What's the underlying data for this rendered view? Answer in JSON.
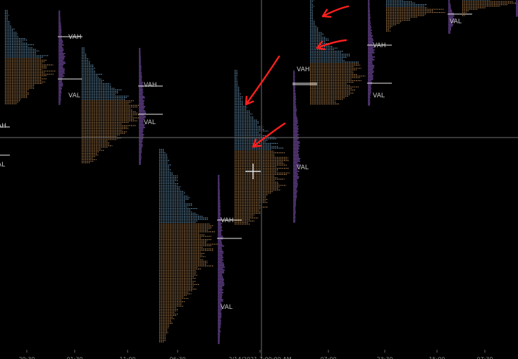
{
  "chart_data": {
    "type": "market-profile",
    "title": "",
    "xlabel": "",
    "ylabel": "",
    "axis_ticks": [
      "20:30",
      "01:30",
      "11:00",
      "06:30",
      "2/14/2021 7:00:00 AM",
      "07:00",
      "23:30",
      "15:00",
      "07:30"
    ],
    "crosshair_label": "2/14/2021 7:00:00 AM",
    "colors": {
      "background": "#000000",
      "early_tpo": "#7fb6dc",
      "late_tpo": "#d59a5c",
      "volume_profile": "#5a3b7e",
      "value_line": "#bdbdbd",
      "crosshair": "#888888",
      "annotation_arrow": "#ff1f1f"
    },
    "value_labels": {
      "vah": "VAH",
      "val": "VAL"
    },
    "profiles": [
      {
        "id": "p1",
        "vah_label": "VAH",
        "val_label": "VAL"
      },
      {
        "id": "p2",
        "vah_label": "VAH",
        "val_label": "VAL"
      },
      {
        "id": "p3",
        "vah_label": "VAH",
        "val_label": "VAL"
      },
      {
        "id": "p4",
        "vah_label": "VAH",
        "val_label": "VAL"
      },
      {
        "id": "p5",
        "vah_label": "VAH",
        "val_label": "VAL"
      },
      {
        "id": "p6",
        "vah_label": "VAH",
        "val_label": "VAL"
      },
      {
        "id": "p7",
        "vah_label": "",
        "val_label": "VAL"
      },
      {
        "id": "p0",
        "vah_label": "AH",
        "val_label": "AL"
      }
    ],
    "annotations": [
      {
        "type": "arrow",
        "color": "#ff1f1f"
      },
      {
        "type": "arrow",
        "color": "#ff1f1f"
      },
      {
        "type": "arrow",
        "color": "#ff1f1f"
      },
      {
        "type": "arrow",
        "color": "#ff1f1f"
      }
    ]
  }
}
